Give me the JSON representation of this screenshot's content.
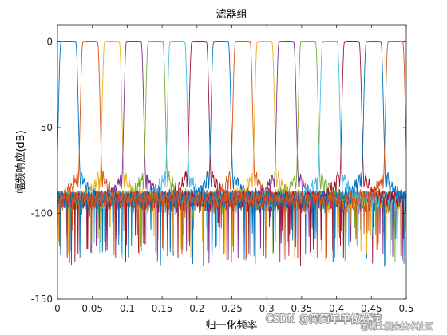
{
  "chart_data": {
    "type": "line",
    "title": "滤器组",
    "xlabel": "归一化频率",
    "ylabel": "幅频响应(dB)",
    "xlim": [
      0,
      0.5
    ],
    "ylim": [
      -150,
      10
    ],
    "xticks": [
      "0",
      "0.05",
      "0.1",
      "0.15",
      "0.2",
      "0.25",
      "0.3",
      "0.35",
      "0.4",
      "0.45",
      "0.5"
    ],
    "xtick_values": [
      0,
      0.05,
      0.1,
      0.15,
      0.2,
      0.25,
      0.3,
      0.35,
      0.4,
      0.45,
      0.5
    ],
    "yticks": [
      "0",
      "-50",
      "-100",
      "-150"
    ],
    "ytick_values": [
      0,
      -50,
      -100,
      -150
    ],
    "grid": false,
    "passband_level_db": 0,
    "transition_floor_db": -75,
    "stopband_level_db": -92,
    "series": [
      {
        "center": 0.0156,
        "color": "#0072BD"
      },
      {
        "center": 0.0469,
        "color": "#D95319"
      },
      {
        "center": 0.0781,
        "color": "#EDB120"
      },
      {
        "center": 0.1094,
        "color": "#7E2F8E"
      },
      {
        "center": 0.1406,
        "color": "#77AC30"
      },
      {
        "center": 0.1719,
        "color": "#4DBEEE"
      },
      {
        "center": 0.2031,
        "color": "#A2142F"
      },
      {
        "center": 0.2344,
        "color": "#0072BD"
      },
      {
        "center": 0.2656,
        "color": "#D95319"
      },
      {
        "center": 0.2969,
        "color": "#EDB120"
      },
      {
        "center": 0.3281,
        "color": "#7E2F8E"
      },
      {
        "center": 0.3594,
        "color": "#77AC30"
      },
      {
        "center": 0.3906,
        "color": "#4DBEEE"
      },
      {
        "center": 0.4219,
        "color": "#A2142F"
      },
      {
        "center": 0.4531,
        "color": "#0072BD"
      },
      {
        "center": 0.4844,
        "color": "#D95319"
      }
    ]
  },
  "watermark": {
    "main": "CSDN @简简单单做算法",
    "sub": "@稀土掘金技术社区"
  }
}
